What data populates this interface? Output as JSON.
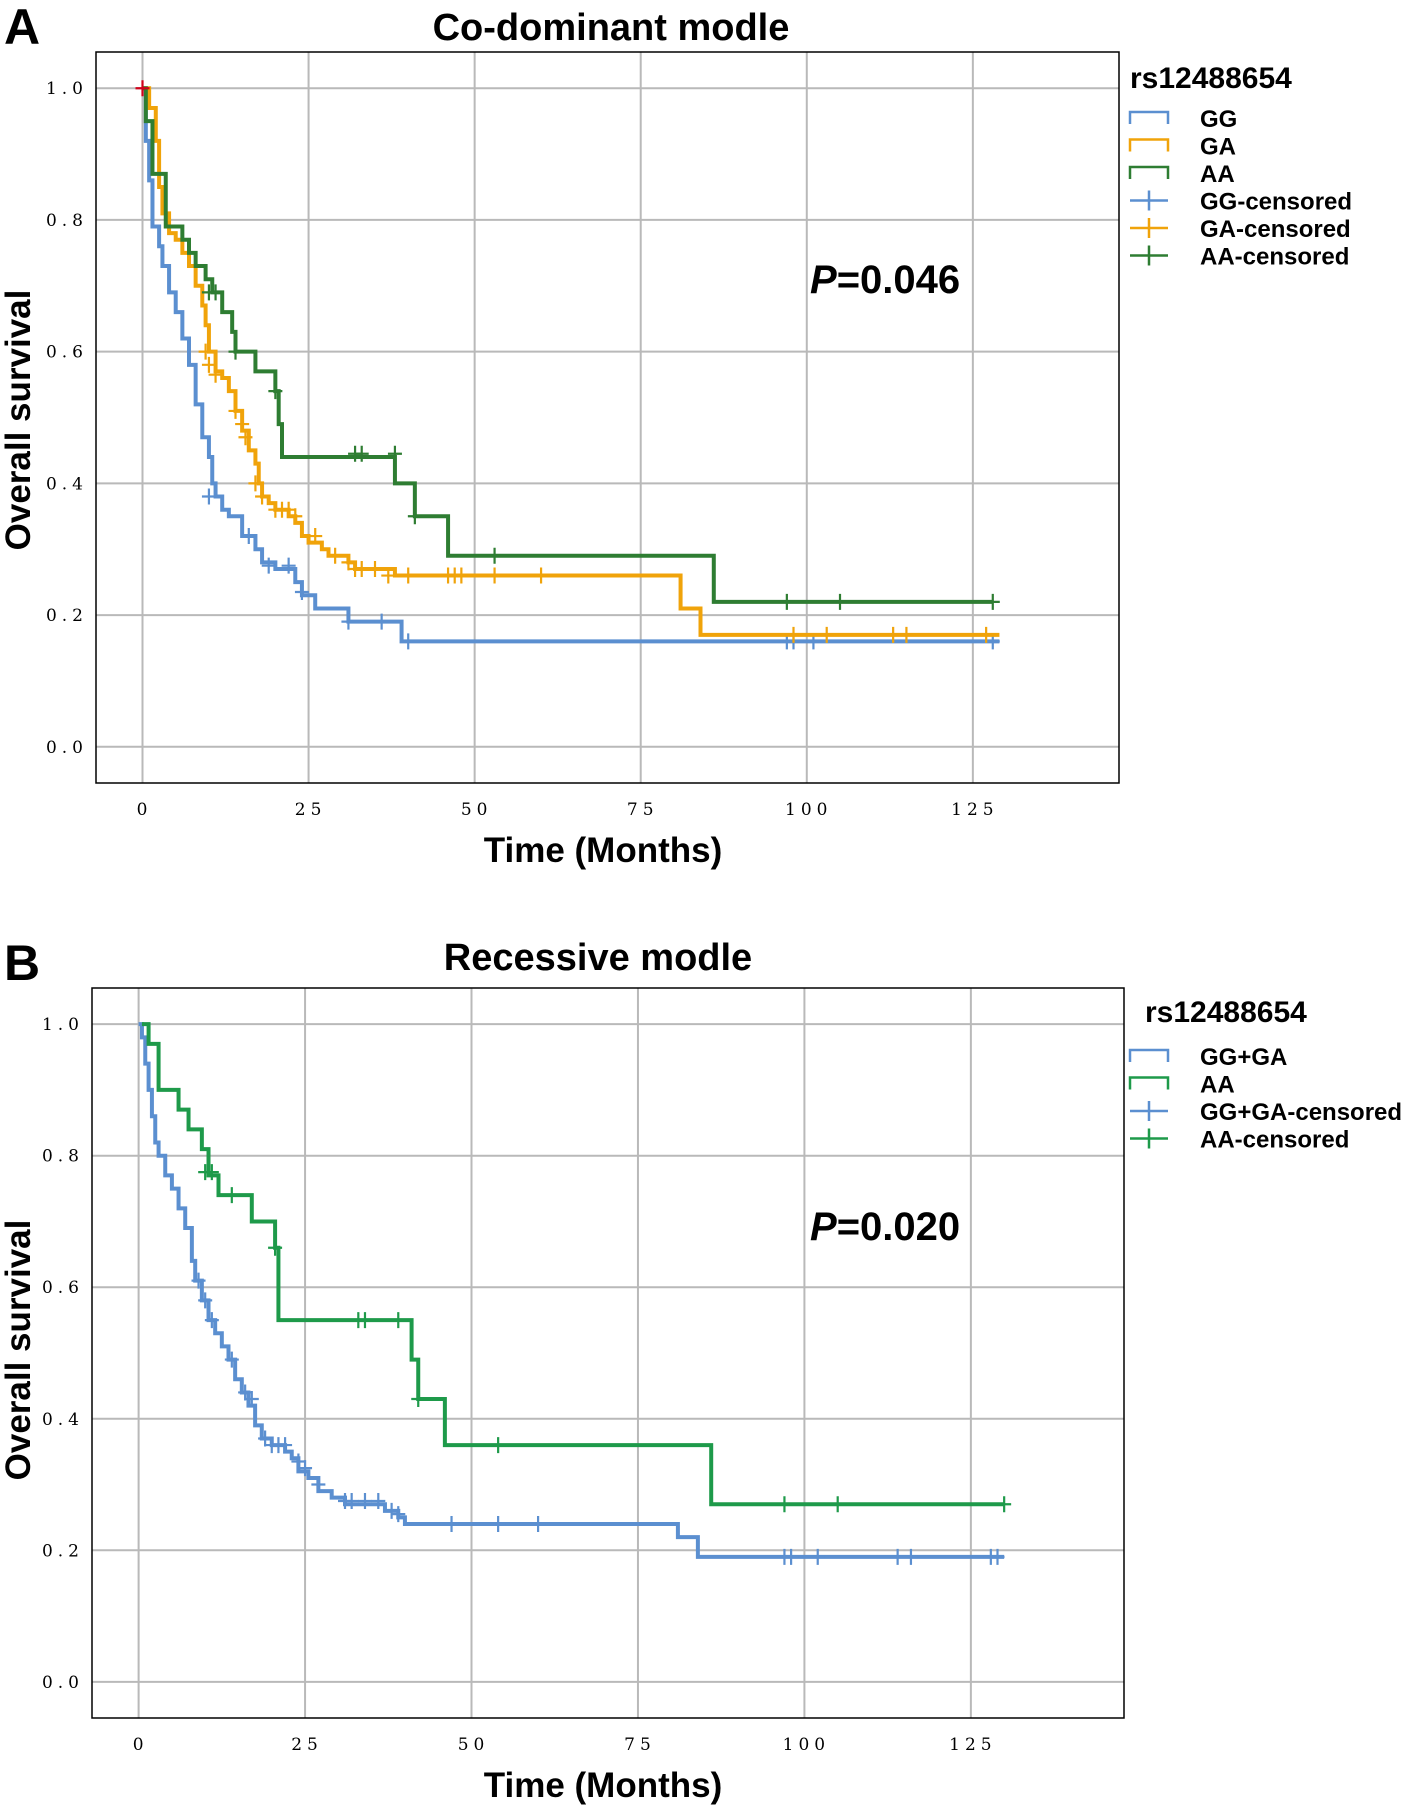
{
  "chart_data": [
    {
      "panel": "A",
      "type": "line",
      "subtype": "kaplan-meier",
      "title": "Co-dominant modle",
      "xlabel": "Time (Months)",
      "ylabel": "Overall survival",
      "xlim": [
        -7,
        147
      ],
      "ylim": [
        -0.055,
        1.055
      ],
      "xticks": [
        0,
        25,
        50,
        75,
        100,
        125
      ],
      "yticks": [
        0.0,
        0.2,
        0.4,
        0.6,
        0.8,
        1.0
      ],
      "xtick_labels": [
        "0",
        "25",
        "50",
        "75",
        "100",
        "125"
      ],
      "ytick_labels": [
        "0.0",
        "0.2",
        "0.4",
        "0.6",
        "0.8",
        "1.0"
      ],
      "grid": true,
      "legend_title": "rs12488654",
      "legend_position": "top-right",
      "annotation": {
        "italic": "P",
        "text": "=0.046"
      },
      "series": [
        {
          "name": "GG",
          "censored_label": "GG-censored",
          "color": "#5b8fd0",
          "steps": [
            [
              0,
              1.0
            ],
            [
              0.5,
              0.92
            ],
            [
              1,
              0.86
            ],
            [
              1.5,
              0.79
            ],
            [
              2.5,
              0.76
            ],
            [
              3,
              0.73
            ],
            [
              4,
              0.69
            ],
            [
              5,
              0.66
            ],
            [
              6,
              0.62
            ],
            [
              7,
              0.58
            ],
            [
              8,
              0.52
            ],
            [
              9,
              0.47
            ],
            [
              10,
              0.44
            ],
            [
              10.5,
              0.4
            ],
            [
              11,
              0.38
            ],
            [
              12,
              0.36
            ],
            [
              13,
              0.35
            ],
            [
              15,
              0.32
            ],
            [
              17,
              0.3
            ],
            [
              18,
              0.28
            ],
            [
              20,
              0.27
            ],
            [
              23,
              0.25
            ],
            [
              24,
              0.23
            ],
            [
              26,
              0.21
            ],
            [
              31,
              0.19
            ],
            [
              39,
              0.16
            ],
            [
              129,
              0.16
            ]
          ],
          "censored": [
            [
              10,
              0.38
            ],
            [
              16,
              0.32
            ],
            [
              19,
              0.275
            ],
            [
              22,
              0.275
            ],
            [
              24,
              0.235
            ],
            [
              31,
              0.19
            ],
            [
              36,
              0.19
            ],
            [
              40,
              0.16
            ],
            [
              97,
              0.16
            ],
            [
              98,
              0.16
            ],
            [
              101,
              0.16
            ],
            [
              128,
              0.16
            ]
          ]
        },
        {
          "name": "GA",
          "censored_label": "GA-censored",
          "color": "#f0a30a",
          "steps": [
            [
              0,
              1.0
            ],
            [
              1,
              0.97
            ],
            [
              2,
              0.92
            ],
            [
              2.5,
              0.85
            ],
            [
              3,
              0.81
            ],
            [
              4,
              0.78
            ],
            [
              5,
              0.77
            ],
            [
              6,
              0.75
            ],
            [
              7,
              0.73
            ],
            [
              8,
              0.7
            ],
            [
              9,
              0.67
            ],
            [
              9.5,
              0.64
            ],
            [
              10,
              0.6
            ],
            [
              11,
              0.57
            ],
            [
              12,
              0.56
            ],
            [
              13,
              0.54
            ],
            [
              14,
              0.51
            ],
            [
              15,
              0.48
            ],
            [
              16,
              0.45
            ],
            [
              17,
              0.43
            ],
            [
              17.5,
              0.4
            ],
            [
              18,
              0.38
            ],
            [
              19,
              0.37
            ],
            [
              20,
              0.36
            ],
            [
              22,
              0.35
            ],
            [
              23,
              0.34
            ],
            [
              24,
              0.32
            ],
            [
              25,
              0.31
            ],
            [
              27,
              0.3
            ],
            [
              28,
              0.29
            ],
            [
              31,
              0.28
            ],
            [
              32,
              0.27
            ],
            [
              38,
              0.26
            ],
            [
              81,
              0.21
            ],
            [
              84,
              0.17
            ],
            [
              129,
              0.17
            ]
          ],
          "censored": [
            [
              9.5,
              0.6
            ],
            [
              10,
              0.58
            ],
            [
              11,
              0.565
            ],
            [
              14,
              0.51
            ],
            [
              15,
              0.49
            ],
            [
              15.5,
              0.47
            ],
            [
              17,
              0.4
            ],
            [
              18,
              0.38
            ],
            [
              20,
              0.36
            ],
            [
              21,
              0.36
            ],
            [
              22,
              0.36
            ],
            [
              23,
              0.35
            ],
            [
              26,
              0.32
            ],
            [
              29,
              0.29
            ],
            [
              31,
              0.28
            ],
            [
              32,
              0.27
            ],
            [
              33,
              0.27
            ],
            [
              35,
              0.27
            ],
            [
              37,
              0.26
            ],
            [
              40,
              0.26
            ],
            [
              46,
              0.26
            ],
            [
              47,
              0.26
            ],
            [
              48,
              0.26
            ],
            [
              53,
              0.26
            ],
            [
              60,
              0.26
            ],
            [
              98,
              0.17
            ],
            [
              103,
              0.17
            ],
            [
              113,
              0.17
            ],
            [
              115,
              0.17
            ],
            [
              127,
              0.17
            ]
          ]
        },
        {
          "name": "AA",
          "censored_label": "AA-censored",
          "color": "#2e7d32",
          "steps": [
            [
              0,
              1.0
            ],
            [
              0.5,
              0.95
            ],
            [
              1.5,
              0.87
            ],
            [
              3.5,
              0.79
            ],
            [
              6,
              0.77
            ],
            [
              7,
              0.75
            ],
            [
              8,
              0.73
            ],
            [
              9.5,
              0.71
            ],
            [
              10.5,
              0.69
            ],
            [
              12,
              0.66
            ],
            [
              13.5,
              0.63
            ],
            [
              14,
              0.6
            ],
            [
              17,
              0.57
            ],
            [
              20,
              0.54
            ],
            [
              20.5,
              0.49
            ],
            [
              21,
              0.44
            ],
            [
              38,
              0.4
            ],
            [
              41,
              0.35
            ],
            [
              46,
              0.29
            ],
            [
              86,
              0.22
            ],
            [
              128,
              0.22
            ]
          ],
          "censored": [
            [
              0,
              1.0
            ],
            [
              10,
              0.69
            ],
            [
              11,
              0.69
            ],
            [
              14,
              0.6
            ],
            [
              20,
              0.54
            ],
            [
              32,
              0.445
            ],
            [
              33,
              0.445
            ],
            [
              38,
              0.445
            ],
            [
              41,
              0.35
            ],
            [
              53,
              0.29
            ],
            [
              97,
              0.22
            ],
            [
              105,
              0.22
            ],
            [
              128,
              0.22
            ]
          ]
        }
      ]
    },
    {
      "panel": "B",
      "type": "line",
      "subtype": "kaplan-meier",
      "title": "Recessive modle",
      "xlabel": "Time (Months)",
      "ylabel": "Overall survival",
      "xlim": [
        -7,
        148
      ],
      "ylim": [
        -0.055,
        1.055
      ],
      "xticks": [
        0,
        25,
        50,
        75,
        100,
        125
      ],
      "yticks": [
        0.0,
        0.2,
        0.4,
        0.6,
        0.8,
        1.0
      ],
      "xtick_labels": [
        "0",
        "25",
        "50",
        "75",
        "100",
        "125"
      ],
      "ytick_labels": [
        "0.0",
        "0.2",
        "0.4",
        "0.6",
        "0.8",
        "1.0"
      ],
      "grid": true,
      "legend_title": "rs12488654",
      "legend_position": "top-right",
      "annotation": {
        "italic": "P",
        "text": "=0.020"
      },
      "series": [
        {
          "name": "GG+GA",
          "censored_label": "GG+GA-censored",
          "color": "#5b8fd0",
          "steps": [
            [
              0,
              1.0
            ],
            [
              0.5,
              0.98
            ],
            [
              1,
              0.94
            ],
            [
              1.5,
              0.9
            ],
            [
              2,
              0.86
            ],
            [
              2.5,
              0.82
            ],
            [
              3,
              0.8
            ],
            [
              4,
              0.77
            ],
            [
              5,
              0.75
            ],
            [
              6,
              0.72
            ],
            [
              7,
              0.69
            ],
            [
              8,
              0.64
            ],
            [
              8.5,
              0.61
            ],
            [
              9.5,
              0.58
            ],
            [
              10.5,
              0.55
            ],
            [
              11.5,
              0.53
            ],
            [
              12.5,
              0.51
            ],
            [
              13.5,
              0.49
            ],
            [
              14.5,
              0.46
            ],
            [
              15.5,
              0.44
            ],
            [
              16.5,
              0.42
            ],
            [
              17.5,
              0.39
            ],
            [
              18.5,
              0.37
            ],
            [
              20,
              0.36
            ],
            [
              22,
              0.35
            ],
            [
              23,
              0.34
            ],
            [
              24,
              0.32
            ],
            [
              25.5,
              0.31
            ],
            [
              27,
              0.29
            ],
            [
              29,
              0.28
            ],
            [
              31,
              0.27
            ],
            [
              37,
              0.26
            ],
            [
              39,
              0.25
            ],
            [
              40,
              0.24
            ],
            [
              81,
              0.22
            ],
            [
              84,
              0.19
            ],
            [
              130,
              0.19
            ]
          ],
          "censored": [
            [
              9,
              0.61
            ],
            [
              10,
              0.58
            ],
            [
              11,
              0.55
            ],
            [
              14,
              0.49
            ],
            [
              16,
              0.44
            ],
            [
              17,
              0.43
            ],
            [
              19,
              0.37
            ],
            [
              20,
              0.36
            ],
            [
              21,
              0.36
            ],
            [
              22,
              0.36
            ],
            [
              24,
              0.335
            ],
            [
              25,
              0.325
            ],
            [
              27,
              0.3
            ],
            [
              31,
              0.275
            ],
            [
              32,
              0.275
            ],
            [
              34,
              0.275
            ],
            [
              36,
              0.275
            ],
            [
              38,
              0.26
            ],
            [
              39,
              0.255
            ],
            [
              47,
              0.24
            ],
            [
              54,
              0.24
            ],
            [
              60,
              0.24
            ],
            [
              97,
              0.19
            ],
            [
              98,
              0.19
            ],
            [
              102,
              0.19
            ],
            [
              114,
              0.19
            ],
            [
              116,
              0.19
            ],
            [
              128,
              0.19
            ],
            [
              129,
              0.19
            ]
          ]
        },
        {
          "name": "AA",
          "censored_label": "AA-censored",
          "color": "#1e9a4a",
          "steps": [
            [
              0.5,
              1.0
            ],
            [
              1.5,
              0.97
            ],
            [
              3,
              0.9
            ],
            [
              6,
              0.87
            ],
            [
              7.5,
              0.84
            ],
            [
              9.5,
              0.81
            ],
            [
              10.5,
              0.77
            ],
            [
              12,
              0.74
            ],
            [
              17,
              0.7
            ],
            [
              20.5,
              0.66
            ],
            [
              21,
              0.55
            ],
            [
              41,
              0.49
            ],
            [
              42,
              0.43
            ],
            [
              46,
              0.36
            ],
            [
              86,
              0.27
            ],
            [
              130,
              0.27
            ]
          ],
          "censored": [
            [
              10,
              0.775
            ],
            [
              11,
              0.775
            ],
            [
              14,
              0.74
            ],
            [
              20.5,
              0.66
            ],
            [
              33,
              0.55
            ],
            [
              34,
              0.55
            ],
            [
              39,
              0.55
            ],
            [
              42,
              0.43
            ],
            [
              54,
              0.36
            ],
            [
              97,
              0.27
            ],
            [
              105,
              0.27
            ],
            [
              130,
              0.27
            ]
          ]
        }
      ]
    }
  ],
  "panels": [
    {
      "letter": "A"
    },
    {
      "letter": "B"
    }
  ]
}
